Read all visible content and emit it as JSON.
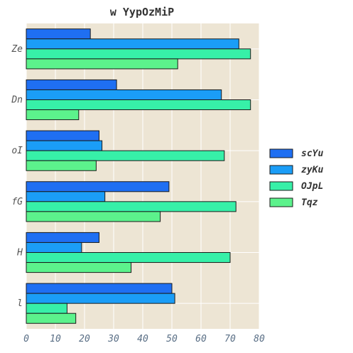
{
  "chart_data": {
    "type": "bar",
    "orientation": "horizontal",
    "title": "w YypOzMiP",
    "categories": [
      "Ze",
      "Dn",
      "oI",
      "fG",
      "H",
      "l"
    ],
    "series": [
      {
        "name": "scYu",
        "values": [
          22,
          31,
          25,
          49,
          25,
          50
        ],
        "color": "#1f6ff2"
      },
      {
        "name": "zyKu",
        "values": [
          73,
          67,
          26,
          27,
          19,
          51
        ],
        "color": "#1b9df7"
      },
      {
        "name": "OJpL",
        "values": [
          77,
          77,
          68,
          72,
          70,
          14
        ],
        "color": "#37f0a8"
      },
      {
        "name": "Tqz",
        "values": [
          52,
          18,
          24,
          46,
          36,
          17
        ],
        "color": "#5cf28c"
      }
    ],
    "xlim": [
      0,
      80
    ],
    "xticks": [
      "0",
      "10",
      "20",
      "30",
      "40",
      "50",
      "60",
      "70",
      "80"
    ],
    "grid": true,
    "plot_bgcolor": "#ede5d4",
    "legend_position": "right"
  }
}
